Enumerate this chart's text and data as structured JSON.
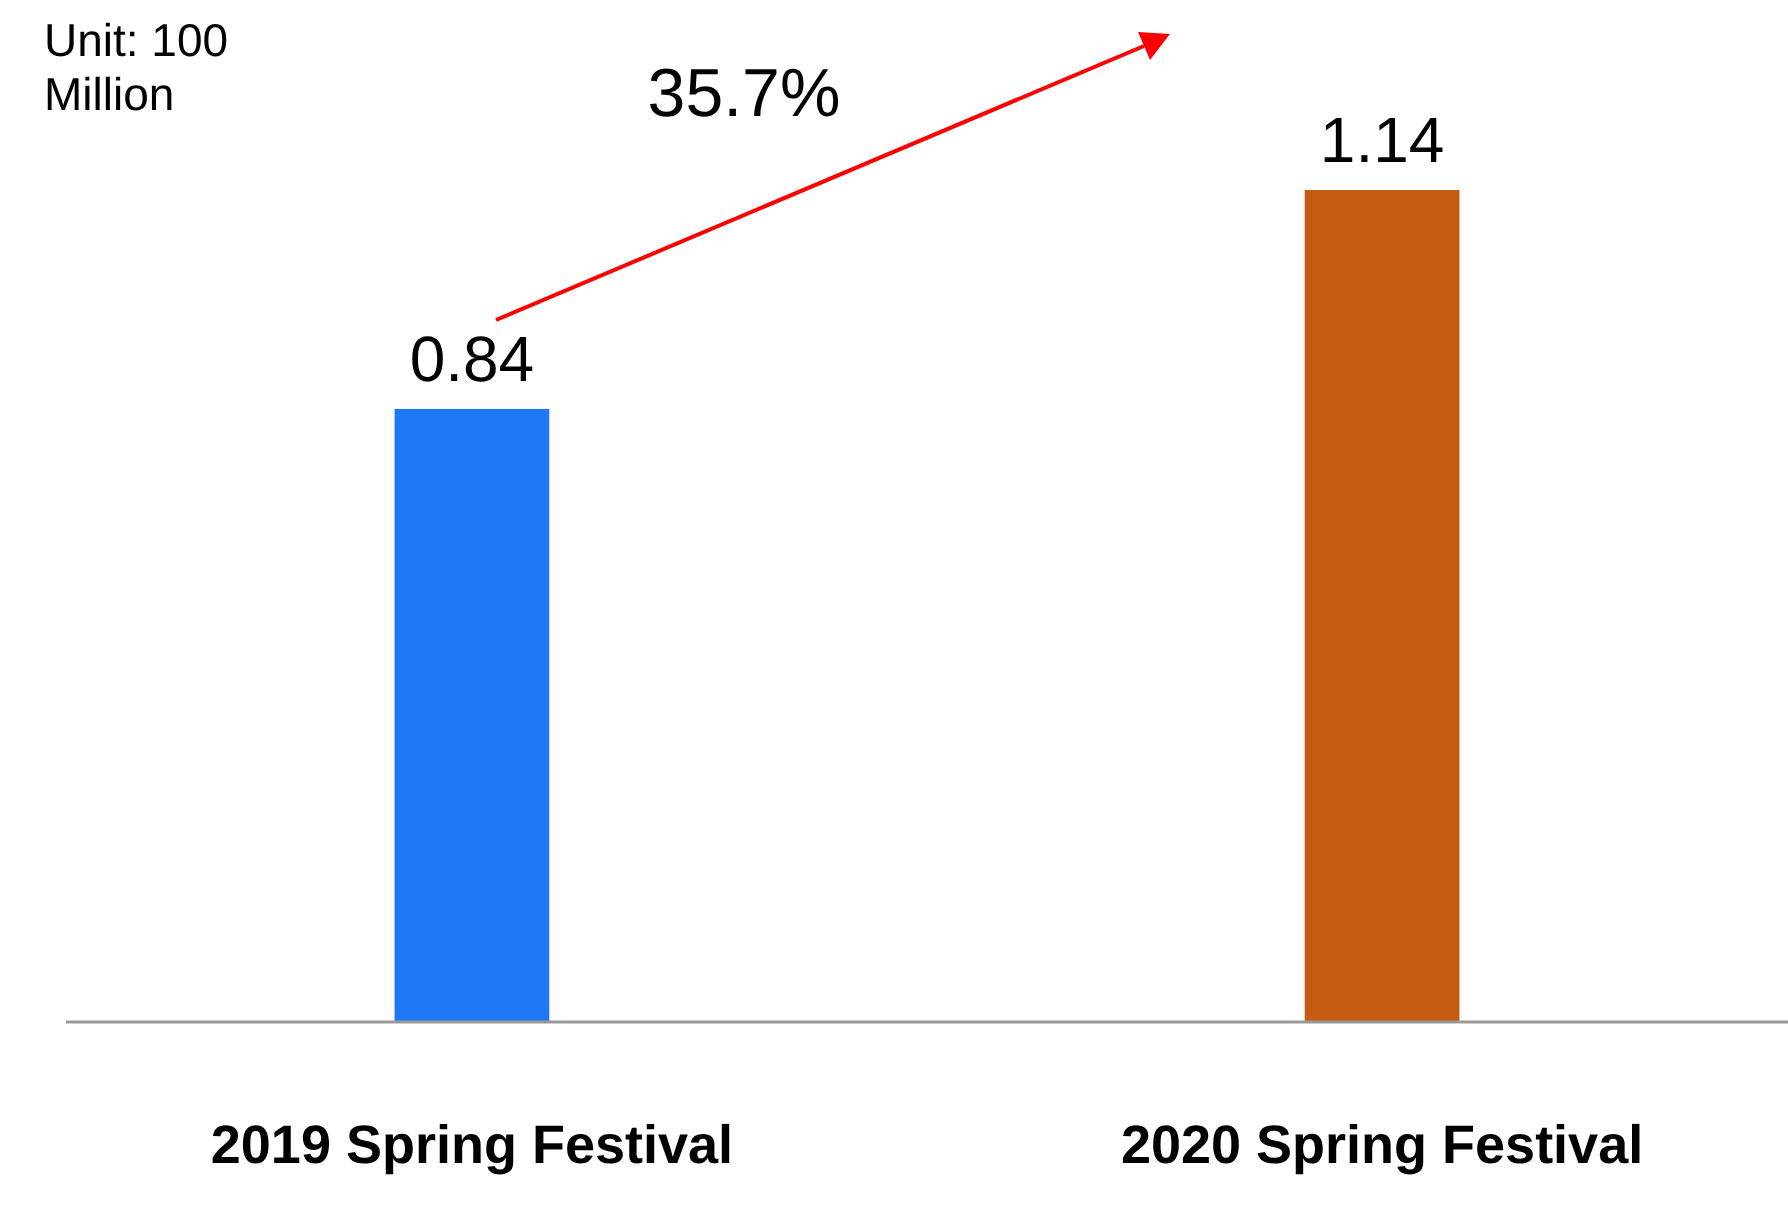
{
  "chart_data": {
    "type": "bar",
    "categories": [
      "2019 Spring Festival",
      "2020 Spring Festival"
    ],
    "values": [
      0.84,
      1.14
    ],
    "colors": [
      "#1f77f5",
      "#c55a11"
    ],
    "data_labels": true,
    "annotations": [
      "Unit: 100 Million",
      "35.7%"
    ]
  }
}
